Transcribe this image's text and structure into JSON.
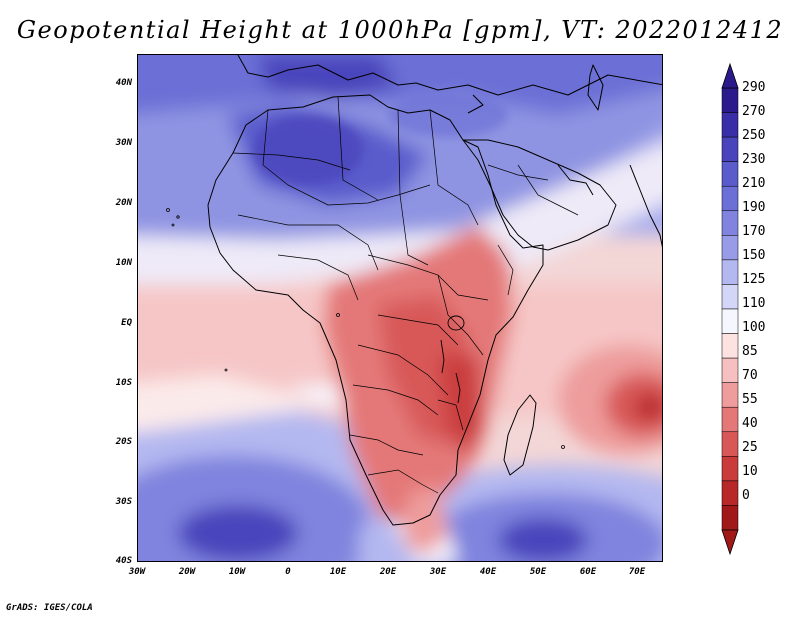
{
  "title": "Geopotential Height at 1000hPa [gpm], VT: 2022012412",
  "y_axis": {
    "labels": [
      "40N",
      "30N",
      "20N",
      "10N",
      "EQ",
      "10S",
      "20S",
      "30S",
      "40S"
    ]
  },
  "x_axis": {
    "labels": [
      "30W",
      "20W",
      "10W",
      "0",
      "10E",
      "20E",
      "30E",
      "40E",
      "50E",
      "60E",
      "70E"
    ]
  },
  "colorbar": {
    "labels": [
      "290",
      "270",
      "250",
      "230",
      "210",
      "190",
      "170",
      "150",
      "125",
      "110",
      "100",
      "85",
      "70",
      "55",
      "40",
      "25",
      "10",
      "0"
    ],
    "colors": [
      "#2a1a8c",
      "#3a2ea8",
      "#4a44bc",
      "#5a5ccc",
      "#6c70d6",
      "#8084de",
      "#989ce6",
      "#b4b8f0",
      "#d4d6f8",
      "#f6f6ff",
      "#fde2e2",
      "#f6c0c0",
      "#ee9c9c",
      "#e47878",
      "#d85858",
      "#ca3c3c",
      "#b82828",
      "#a01818"
    ]
  },
  "footer": "GrADS: IGES/COLA"
}
